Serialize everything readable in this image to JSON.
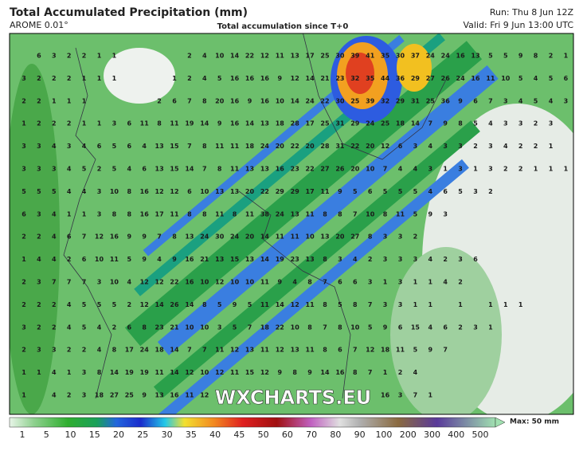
{
  "header": {
    "title": "Total Accumulated Precipitation (mm)",
    "model": "AROME 0.01°",
    "subtitle": "Total accumulation since T+0",
    "run": "Run: Thu 8 Jun 12Z",
    "valid": "Valid: Fri 9 Jun 13:00 UTC"
  },
  "watermark": "WXCHARTS.EU",
  "grid_values": [
    [
      null,
      6,
      3,
      2,
      2,
      1,
      1,
      null,
      null,
      null,
      null,
      2,
      4,
      10,
      14,
      22,
      12,
      11,
      13,
      17,
      25,
      30,
      39,
      41,
      35,
      30,
      37,
      24,
      24,
      16,
      13,
      5,
      5,
      9,
      8,
      2,
      1
    ],
    [
      3,
      2,
      2,
      2,
      1,
      1,
      1,
      null,
      null,
      null,
      1,
      2,
      4,
      5,
      16,
      16,
      16,
      9,
      12,
      14,
      21,
      23,
      32,
      35,
      44,
      36,
      29,
      27,
      26,
      24,
      16,
      11,
      10,
      5,
      4,
      5,
      6
    ],
    [
      2,
      2,
      1,
      1,
      1,
      null,
      null,
      null,
      null,
      2,
      6,
      7,
      8,
      20,
      16,
      9,
      16,
      10,
      14,
      24,
      22,
      30,
      25,
      39,
      32,
      29,
      31,
      25,
      36,
      9,
      6,
      7,
      3,
      4,
      5,
      4,
      3
    ],
    [
      1,
      2,
      2,
      2,
      1,
      1,
      3,
      6,
      11,
      8,
      11,
      19,
      14,
      9,
      16,
      14,
      13,
      18,
      28,
      17,
      25,
      31,
      29,
      24,
      25,
      18,
      14,
      7,
      9,
      8,
      5,
      4,
      3,
      3,
      2,
      3,
      null
    ],
    [
      3,
      3,
      4,
      3,
      4,
      6,
      5,
      6,
      4,
      13,
      15,
      7,
      8,
      11,
      11,
      18,
      24,
      20,
      22,
      20,
      28,
      31,
      22,
      20,
      12,
      6,
      3,
      4,
      3,
      3,
      2,
      3,
      4,
      2,
      2,
      1,
      null
    ],
    [
      3,
      3,
      3,
      4,
      5,
      2,
      5,
      4,
      6,
      13,
      15,
      14,
      7,
      8,
      11,
      13,
      13,
      16,
      23,
      22,
      27,
      26,
      20,
      10,
      7,
      4,
      4,
      3,
      1,
      3,
      1,
      3,
      2,
      2,
      1,
      1,
      1
    ],
    [
      5,
      5,
      5,
      4,
      4,
      3,
      10,
      8,
      16,
      12,
      12,
      6,
      10,
      13,
      13,
      20,
      22,
      29,
      29,
      17,
      11,
      9,
      5,
      6,
      5,
      5,
      5,
      4,
      6,
      5,
      3,
      2
    ],
    [
      6,
      3,
      4,
      1,
      1,
      3,
      8,
      8,
      16,
      17,
      11,
      8,
      8,
      11,
      8,
      11,
      38,
      24,
      13,
      11,
      8,
      8,
      7,
      10,
      8,
      11,
      5,
      9,
      3
    ],
    [
      2,
      2,
      4,
      6,
      7,
      12,
      16,
      9,
      9,
      7,
      8,
      13,
      24,
      30,
      24,
      20,
      14,
      11,
      11,
      10,
      13,
      20,
      27,
      8,
      3,
      3,
      2
    ],
    [
      1,
      4,
      4,
      2,
      6,
      10,
      11,
      5,
      9,
      4,
      9,
      16,
      21,
      13,
      15,
      13,
      14,
      19,
      23,
      13,
      8,
      3,
      4,
      2,
      3,
      3,
      3,
      4,
      2,
      3,
      6
    ],
    [
      2,
      3,
      7,
      7,
      7,
      3,
      10,
      4,
      12,
      12,
      22,
      16,
      10,
      12,
      10,
      10,
      11,
      9,
      4,
      8,
      7,
      6,
      6,
      3,
      1,
      3,
      1,
      1,
      4,
      2
    ],
    [
      2,
      2,
      2,
      4,
      5,
      5,
      5,
      2,
      12,
      14,
      26,
      14,
      8,
      5,
      9,
      5,
      11,
      14,
      12,
      11,
      8,
      5,
      8,
      7,
      3,
      3,
      1,
      1,
      null,
      1,
      null,
      1,
      1,
      1
    ],
    [
      3,
      2,
      2,
      4,
      5,
      4,
      2,
      6,
      8,
      23,
      21,
      10,
      10,
      3,
      5,
      7,
      18,
      22,
      10,
      8,
      7,
      8,
      10,
      5,
      9,
      6,
      15,
      4,
      6,
      2,
      3,
      1
    ],
    [
      2,
      3,
      3,
      2,
      2,
      4,
      8,
      17,
      24,
      18,
      14,
      7,
      7,
      11,
      12,
      13,
      11,
      12,
      13,
      11,
      8,
      6,
      7,
      12,
      18,
      11,
      5,
      9,
      7
    ],
    [
      1,
      1,
      4,
      1,
      3,
      8,
      14,
      19,
      19,
      11,
      14,
      12,
      10,
      12,
      11,
      15,
      12,
      9,
      8,
      9,
      14,
      16,
      8,
      7,
      1,
      2,
      4
    ],
    [
      1,
      null,
      4,
      2,
      3,
      18,
      27,
      25,
      9,
      13,
      16,
      11,
      12,
      null,
      null,
      null,
      null,
      null,
      null,
      null,
      null,
      null,
      null,
      null,
      16,
      3,
      7,
      1
    ]
  ],
  "legend": {
    "labels": [
      "1",
      "5",
      "10",
      "15",
      "20",
      "25",
      "30",
      "35",
      "40",
      "45",
      "50",
      "60",
      "70",
      "80",
      "90",
      "100",
      "200",
      "300",
      "400",
      "500"
    ],
    "max": "Max: 50 mm"
  }
}
